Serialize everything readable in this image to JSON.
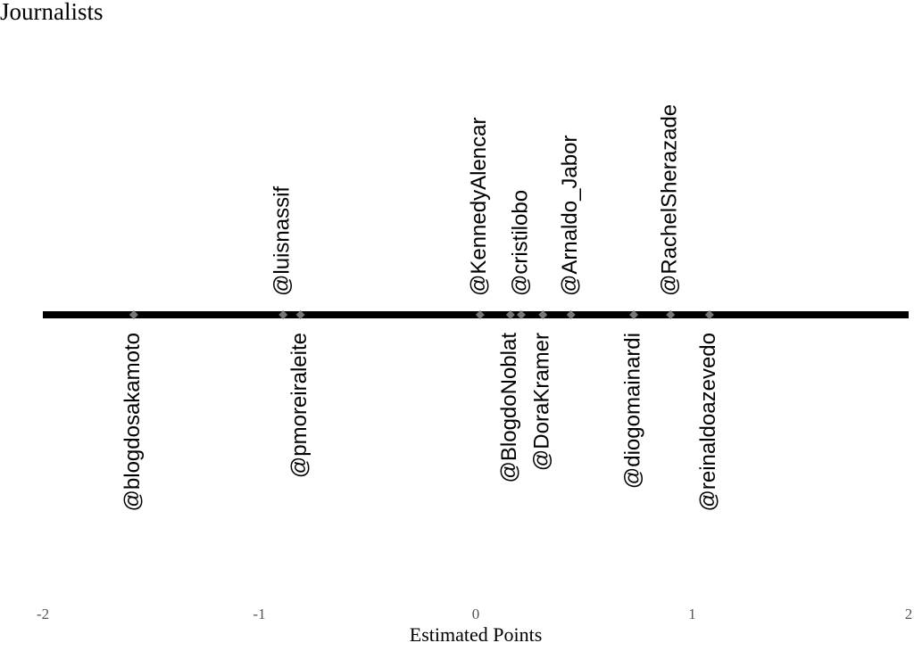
{
  "chart_data": {
    "type": "strip",
    "title": "Journalists",
    "x_label": "Estimated Points",
    "labels": [
      "@blogdosakamoto",
      "@luisnassif",
      "@pmoreiraleite",
      "@KennedyAlencar",
      "@BlogdoNoblat",
      "@cristilobo",
      "@DoraKramer",
      "@Arnaldo_Jabor",
      "@diogomainardi",
      "@RachelSherazade",
      "@reinaldoazevedo"
    ],
    "values": [
      -1.58,
      -0.89,
      -0.81,
      0.02,
      0.16,
      0.21,
      0.31,
      0.44,
      0.73,
      0.9,
      1.08
    ],
    "color": "#777777",
    "line_color": "#000000",
    "xlim": [
      -2,
      2
    ],
    "xticks": [
      -2,
      -1,
      0,
      1,
      2
    ]
  }
}
